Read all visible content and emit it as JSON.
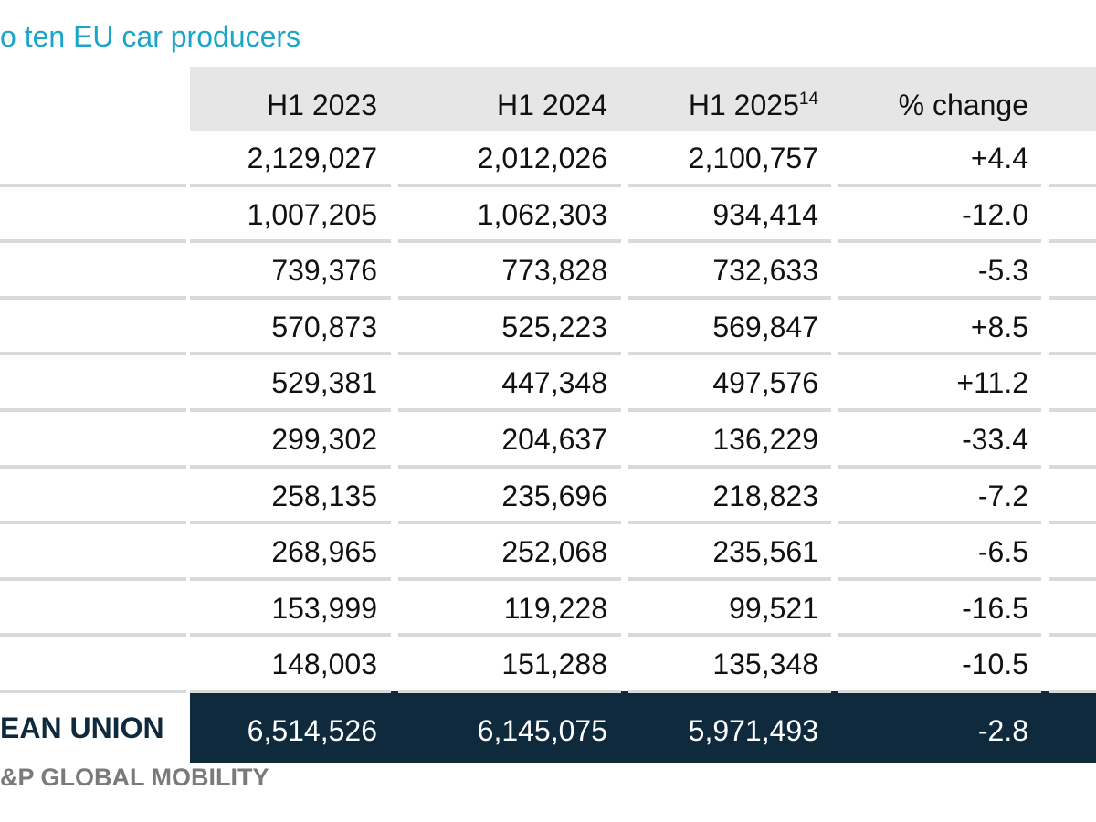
{
  "title": "o ten EU car producers",
  "table": {
    "header": [
      "H1 2023",
      "H1 2024",
      "H1 2025",
      "% change"
    ],
    "header_superscript": "14",
    "rows": [
      [
        "2,129,027",
        "2,012,026",
        "2,100,757",
        "+4.4"
      ],
      [
        "1,007,205",
        "1,062,303",
        "934,414",
        "-12.0"
      ],
      [
        "739,376",
        "773,828",
        "732,633",
        "-5.3"
      ],
      [
        "570,873",
        "525,223",
        "569,847",
        "+8.5"
      ],
      [
        "529,381",
        "447,348",
        "497,576",
        "+11.2"
      ],
      [
        "299,302",
        "204,637",
        "136,229",
        "-33.4"
      ],
      [
        "258,135",
        "235,696",
        "218,823",
        "-7.2"
      ],
      [
        "268,965",
        "252,068",
        "235,561",
        "-6.5"
      ],
      [
        "153,999",
        "119,228",
        "99,521",
        "-16.5"
      ],
      [
        "148,003",
        "151,288",
        "135,348",
        "-10.5"
      ]
    ],
    "total": {
      "label": "EAN UNION",
      "values": [
        "6,514,526",
        "6,145,075",
        "5,971,493",
        "-2.8"
      ]
    }
  },
  "source": "&P GLOBAL MOBILITY"
}
